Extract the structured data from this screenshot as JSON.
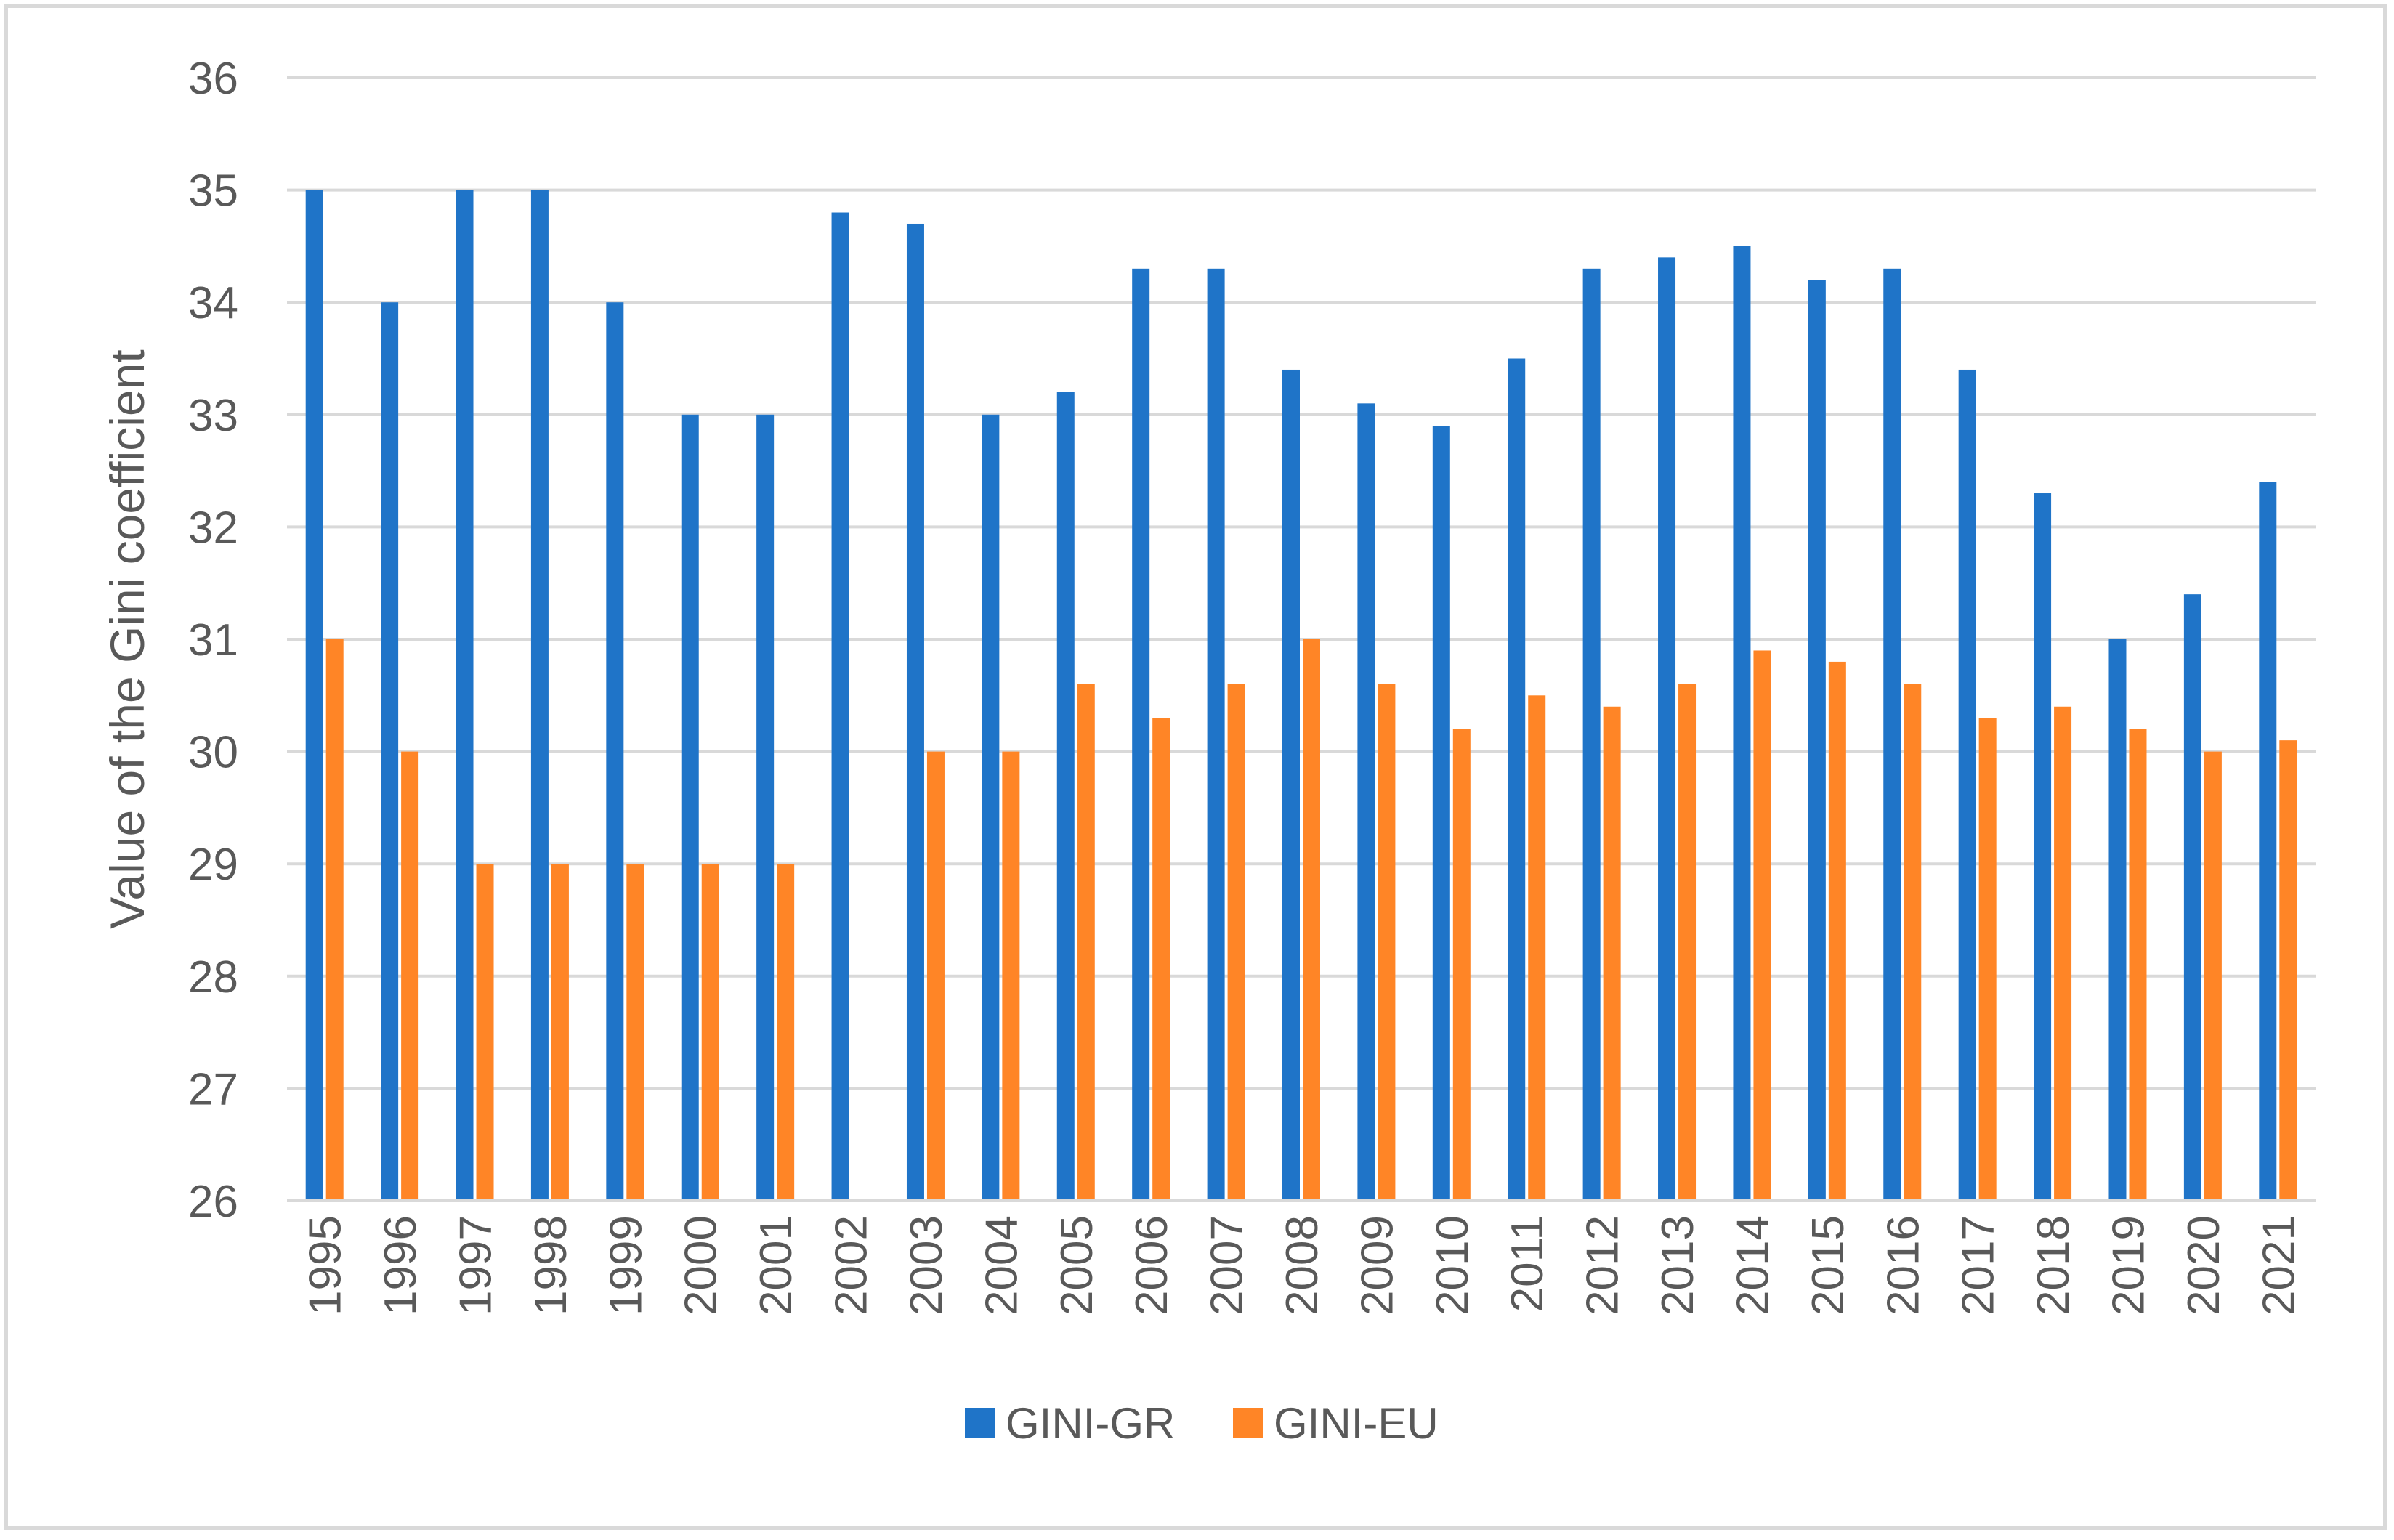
{
  "chart_data": {
    "type": "bar",
    "title": "",
    "xlabel": "",
    "ylabel": "Value of the Gini coefficient",
    "ylim": [
      26,
      36
    ],
    "ytick_step": 1,
    "grid": true,
    "legend_position": "bottom",
    "categories": [
      "1995",
      "1996",
      "1997",
      "1998",
      "1999",
      "2000",
      "2001",
      "2002",
      "2003",
      "2004",
      "2005",
      "2006",
      "2007",
      "2008",
      "2009",
      "2010",
      "2011",
      "2012",
      "2013",
      "2014",
      "2015",
      "2016",
      "2017",
      "2018",
      "2019",
      "2020",
      "2021"
    ],
    "series": [
      {
        "name": "GINI-GR",
        "color": "#1f74c8",
        "values": [
          35,
          34,
          35,
          35,
          34,
          33,
          33,
          34.8,
          34.7,
          33,
          33.2,
          34.3,
          34.3,
          33.4,
          33.1,
          32.9,
          33.5,
          34.3,
          34.4,
          34.5,
          34.2,
          34.3,
          33.4,
          32.3,
          31,
          31.4,
          32.4
        ]
      },
      {
        "name": "GINI-EU",
        "color": "#ff8526",
        "values": [
          31,
          30,
          29,
          29,
          29,
          29,
          29,
          null,
          30,
          30,
          30.6,
          30.3,
          30.6,
          31,
          30.6,
          30.2,
          30.5,
          30.4,
          30.6,
          30.9,
          30.8,
          30.6,
          30.3,
          30.4,
          30.2,
          30,
          30.1
        ]
      }
    ]
  }
}
